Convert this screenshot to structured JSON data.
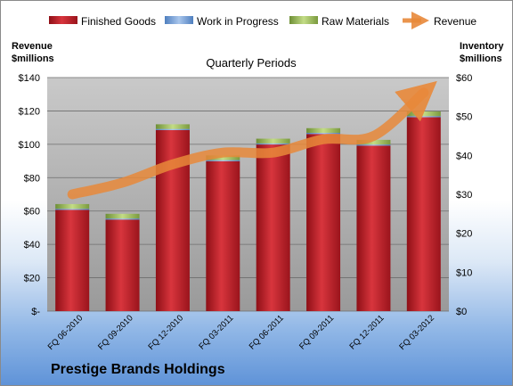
{
  "chart_data": {
    "type": "bar",
    "title": "Quarterly Periods",
    "company": "Prestige Brands Holdings",
    "categories": [
      "FQ 06-2010",
      "FQ 09-2010",
      "FQ 12-2010",
      "FQ 03-2011",
      "FQ 06-2011",
      "FQ 09-2011",
      "FQ 12-2011",
      "FQ 03-2012"
    ],
    "series": [
      {
        "name": "Finished Goods",
        "axis": "right",
        "stacked": true,
        "color": "#c8202a",
        "values": [
          26.0,
          23.5,
          46.5,
          38.5,
          42.8,
          45.5,
          42.5,
          49.8
        ]
      },
      {
        "name": "Work in Progress",
        "axis": "right",
        "stacked": true,
        "color": "#7fa6d8",
        "values": [
          0.3,
          0.3,
          0.3,
          0.3,
          0.3,
          0.3,
          0.3,
          0.3
        ]
      },
      {
        "name": "Raw Materials",
        "axis": "right",
        "stacked": true,
        "color": "#9bbf58",
        "values": [
          1.2,
          1.2,
          1.2,
          1.2,
          1.2,
          1.2,
          1.2,
          1.2
        ]
      },
      {
        "name": "Revenue",
        "axis": "left",
        "type": "line",
        "color": "#e8883a",
        "values": [
          70,
          77,
          88,
          95,
          95,
          103,
          105,
          131
        ]
      }
    ],
    "ylabel_left": "Revenue\n$millions",
    "ylabel_right": "Inventory\n$millions",
    "yticks_left": [
      "$-",
      "$20",
      "$40",
      "$60",
      "$80",
      "$100",
      "$120",
      "$140"
    ],
    "yticks_right": [
      "$0",
      "$10",
      "$20",
      "$30",
      "$40",
      "$50",
      "$60"
    ],
    "ylim_left": [
      0,
      140
    ],
    "ylim_right": [
      0,
      60
    ],
    "grid": true,
    "legend_position": "top"
  }
}
